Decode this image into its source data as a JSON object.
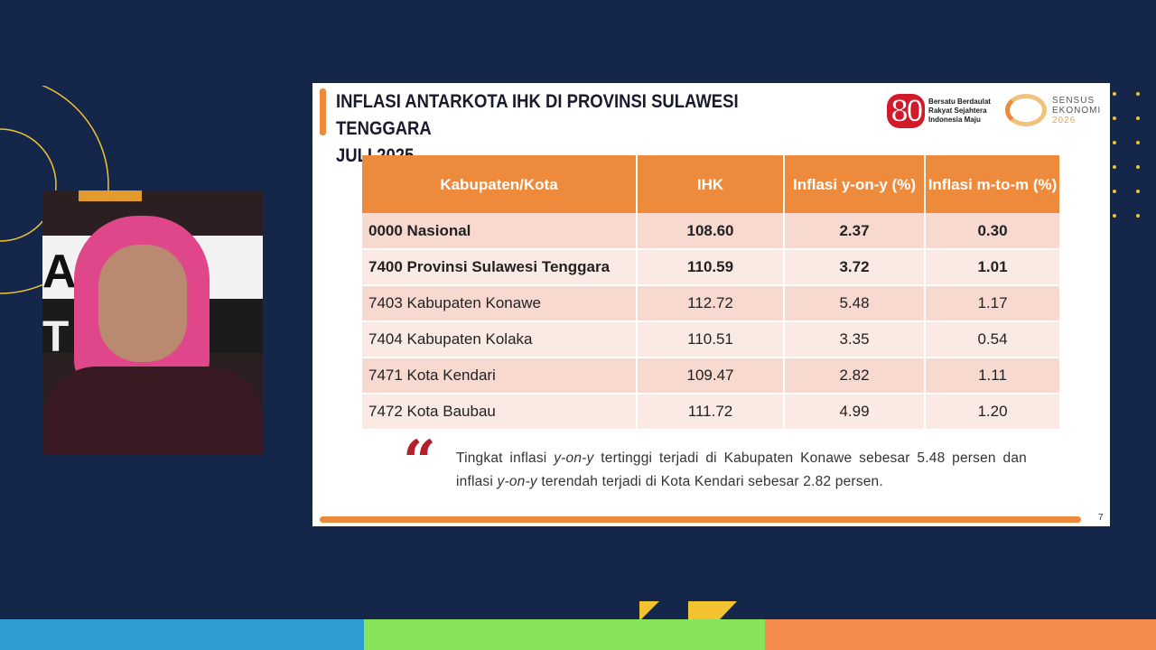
{
  "slide": {
    "title_line1": "INFLASI ANTARKOTA IHK DI PROVINSI SULAWESI TENGGARA",
    "title_line2": "JULI 2025",
    "logo_80": {
      "number": "80",
      "tagline": [
        "Bersatu Berdaulat",
        "Rakyat Sejahtera",
        "Indonesia Maju"
      ]
    },
    "logo_sensus": {
      "lines": [
        "SENSUS",
        "EKONOMI",
        "2026"
      ]
    },
    "table": {
      "headers": [
        "Kabupaten/Kota",
        "IHK",
        "Inflasi y-on-y (%)",
        "Inflasi m-to-m (%)"
      ],
      "rows": [
        [
          "0000 Nasional",
          "108.60",
          "2.37",
          "0.30"
        ],
        [
          "7400 Provinsi Sulawesi Tenggara",
          "110.59",
          "3.72",
          "1.01"
        ],
        [
          "7403 Kabupaten Konawe",
          "112.72",
          "5.48",
          "1.17"
        ],
        [
          "7404 Kabupaten Kolaka",
          "110.51",
          "3.35",
          "0.54"
        ],
        [
          "7471 Kota Kendari",
          "109.47",
          "2.82",
          "1.11"
        ],
        [
          "7472 Kota Baubau",
          "111.72",
          "4.99",
          "1.20"
        ]
      ]
    },
    "quote_mark": "“",
    "note": {
      "p1": "Tingkat inflasi ",
      "i1": "y-on-y",
      "p2": " tertinggi terjadi di Kabupaten Konawe sebesar 5.48 persen dan inflasi ",
      "i2": "y-on-y",
      "p3": " terendah terjadi di Kota Kendari sebesar 2.82 persen."
    },
    "page_number": "7"
  },
  "colors": {
    "background": "#14274b",
    "accent": "#ee8a3c",
    "stripe_blue": "#2e9bd1",
    "stripe_green": "#86e35a",
    "stripe_orange": "#f48a4e"
  }
}
